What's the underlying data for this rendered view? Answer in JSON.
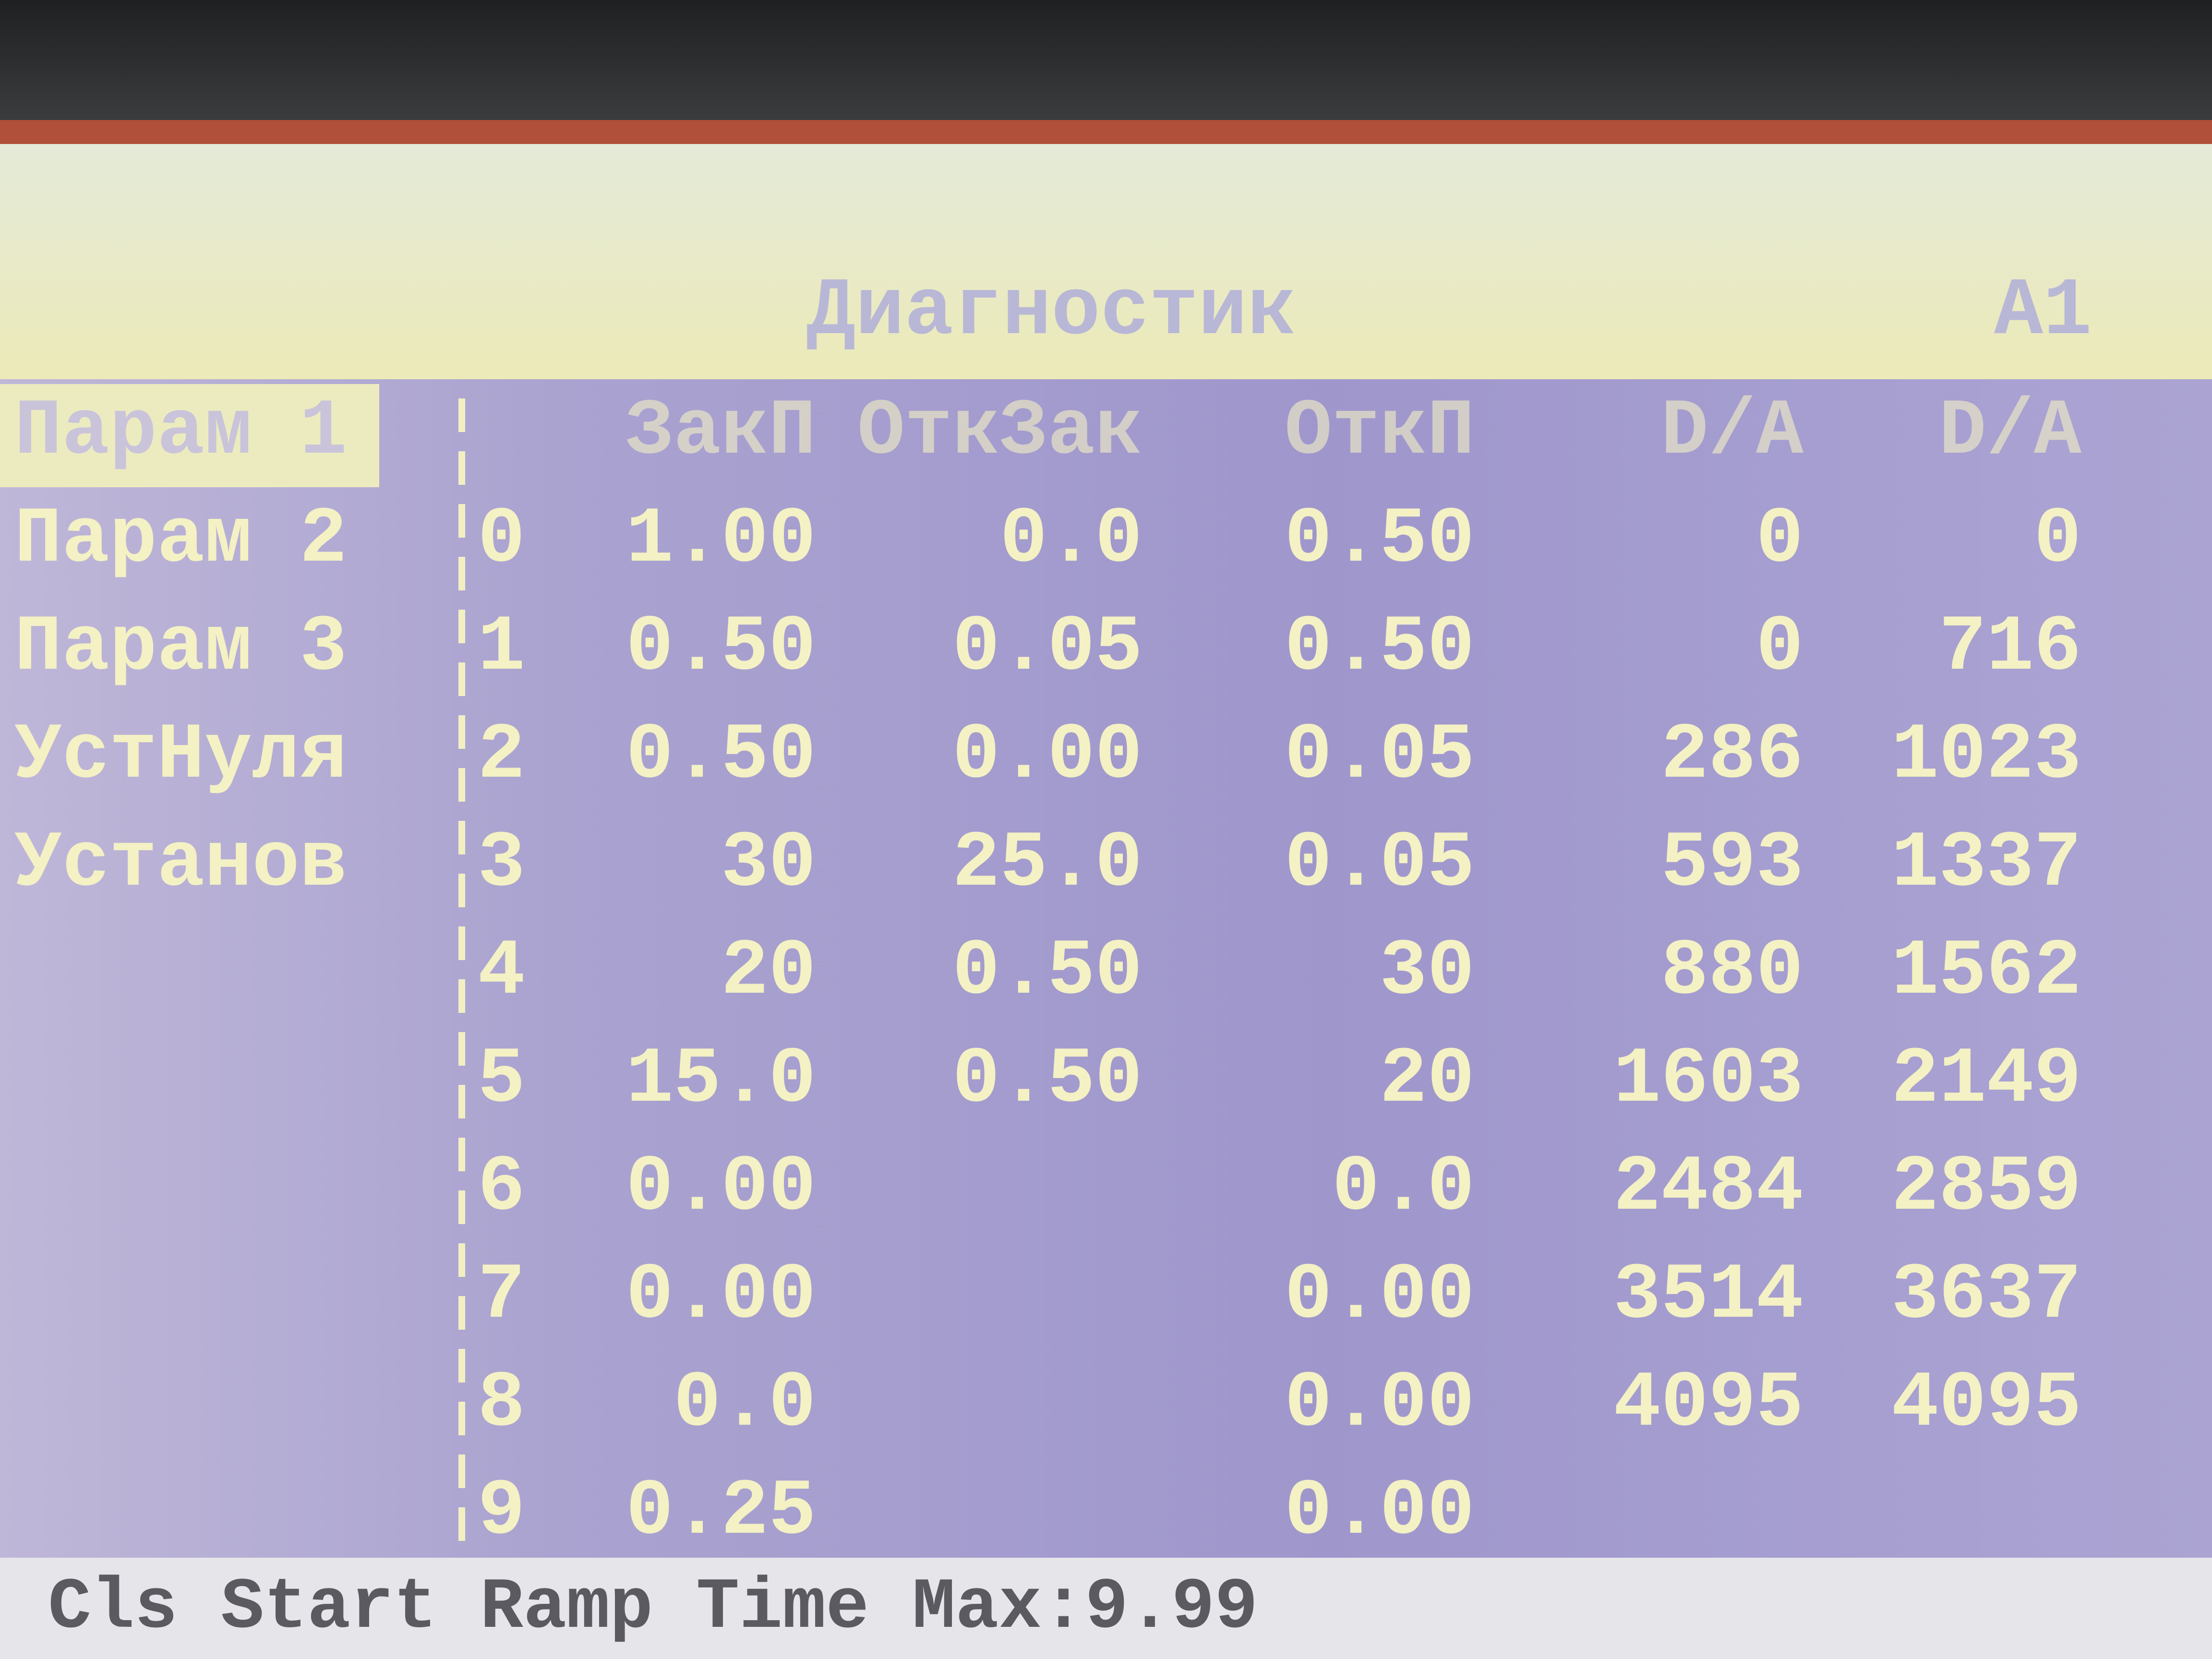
{
  "header": {
    "title": "Диагностик",
    "indicator": "A1"
  },
  "menu": [
    "Парам 1",
    "Парам 2",
    "Парам 3",
    "УстНуля",
    "Установ"
  ],
  "table": {
    "columns": [
      "ЗакП",
      "ОткЗак",
      "ОткП",
      "D/A",
      "D/A"
    ],
    "rows": [
      [
        "0",
        "1.00",
        "0.0",
        "0.50",
        "0",
        "0"
      ],
      [
        "1",
        "0.50",
        "0.05",
        "0.50",
        "0",
        "716"
      ],
      [
        "2",
        "0.50",
        "0.00",
        "0.05",
        "286",
        "1023"
      ],
      [
        "3",
        "30",
        "25.0",
        "0.05",
        "593",
        "1337"
      ],
      [
        "4",
        "20",
        "0.50",
        "30",
        "880",
        "1562"
      ],
      [
        "5",
        "15.0",
        "0.50",
        "20",
        "1603",
        "2149"
      ],
      [
        "6",
        "0.00",
        null,
        "0.0",
        "2484",
        "2859"
      ],
      [
        "7",
        "0.00",
        null,
        "0.00",
        "3514",
        "3637"
      ],
      [
        "8",
        "0.0",
        null,
        "0.00",
        "4095",
        "4095"
      ],
      [
        "9",
        "0.25",
        null,
        "0.00",
        null,
        null
      ]
    ]
  },
  "footer": "Cls Start Ramp Time Max:9.99"
}
